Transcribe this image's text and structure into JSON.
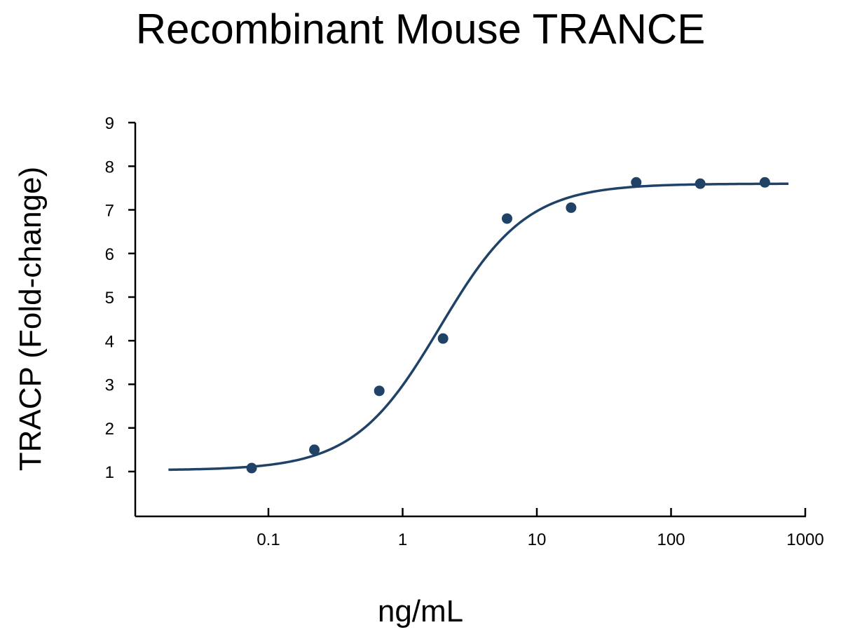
{
  "chart_data": {
    "type": "scatter",
    "title": "Recombinant Mouse TRANCE",
    "xlabel": "ng/mL",
    "ylabel": "TRACP (Fold-change)",
    "x_scale": "log",
    "xlim": [
      0.01,
      1000
    ],
    "ylim": [
      0,
      9
    ],
    "x_ticks": [
      0.1,
      1,
      10,
      100,
      1000
    ],
    "x_tick_labels": [
      "0.1",
      "1",
      "10",
      "100",
      "1000"
    ],
    "y_ticks": [
      1,
      2,
      3,
      4,
      5,
      6,
      7,
      8,
      9
    ],
    "y_tick_labels": [
      "1",
      "2",
      "3",
      "4",
      "5",
      "6",
      "7",
      "8",
      "9"
    ],
    "grid": false,
    "color": "#1f4266",
    "points": {
      "x": [
        0.075,
        0.22,
        0.67,
        2.0,
        6.0,
        18.0,
        55.0,
        165.0,
        500.0
      ],
      "y": [
        1.08,
        1.5,
        2.85,
        4.05,
        6.8,
        7.05,
        7.63,
        7.6,
        7.63
      ]
    },
    "fit_curve": {
      "x_range": [
        0.018,
        750
      ],
      "bottom": 1.03,
      "top": 7.6,
      "ec50": 1.9,
      "hill": 1.35
    }
  }
}
